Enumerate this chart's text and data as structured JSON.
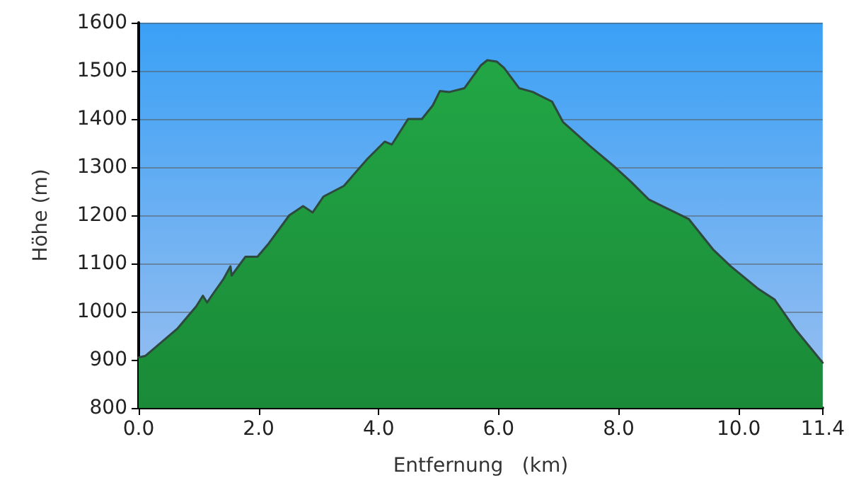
{
  "chart_data": {
    "type": "area",
    "xlabel": "Entfernung   (km)",
    "ylabel": "Höhe (m)",
    "xlim": [
      0,
      11.4
    ],
    "xticks": [
      {
        "value": 0,
        "label": "0.0"
      },
      {
        "value": 2,
        "label": "2.0"
      },
      {
        "value": 4,
        "label": "4.0"
      },
      {
        "value": 6,
        "label": "6.0"
      },
      {
        "value": 8,
        "label": "8.0"
      },
      {
        "value": 10,
        "label": "10.0"
      },
      {
        "value": 11.4,
        "label": "11.4"
      }
    ],
    "ylim": [
      800,
      1600
    ],
    "yticks": [
      800,
      900,
      1000,
      1100,
      1200,
      1300,
      1400,
      1500,
      1600
    ],
    "grid": "y",
    "marker": "none",
    "line_style": "solid",
    "series": [
      {
        "color": "#22a645",
        "x": [
          0,
          0.11,
          0.64,
          0.96,
          1.07,
          1.14,
          1.25,
          1.41,
          1.53,
          1.55,
          1.78,
          1.98,
          2.17,
          2.51,
          2.74,
          2.9,
          3.08,
          3.42,
          3.65,
          3.81,
          4.1,
          4.22,
          4.49,
          4.72,
          4.9,
          5.02,
          5.18,
          5.43,
          5.7,
          5.81,
          5.97,
          6.09,
          6.34,
          6.57,
          6.89,
          7.07,
          7.52,
          7.91,
          8.21,
          8.5,
          9.17,
          9.58,
          9.87,
          10.33,
          10.6,
          10.94,
          11.4
        ],
        "values": [
          905,
          908,
          964,
          1011,
          1033,
          1019,
          1039,
          1067,
          1094,
          1075,
          1114,
          1114,
          1142,
          1200,
          1219,
          1206,
          1239,
          1261,
          1294,
          1317,
          1353,
          1347,
          1400,
          1400,
          1428,
          1458,
          1456,
          1464,
          1511,
          1522,
          1519,
          1506,
          1464,
          1456,
          1436,
          1394,
          1344,
          1303,
          1269,
          1233,
          1192,
          1128,
          1094,
          1047,
          1025,
          964,
          894
        ]
      }
    ]
  }
}
